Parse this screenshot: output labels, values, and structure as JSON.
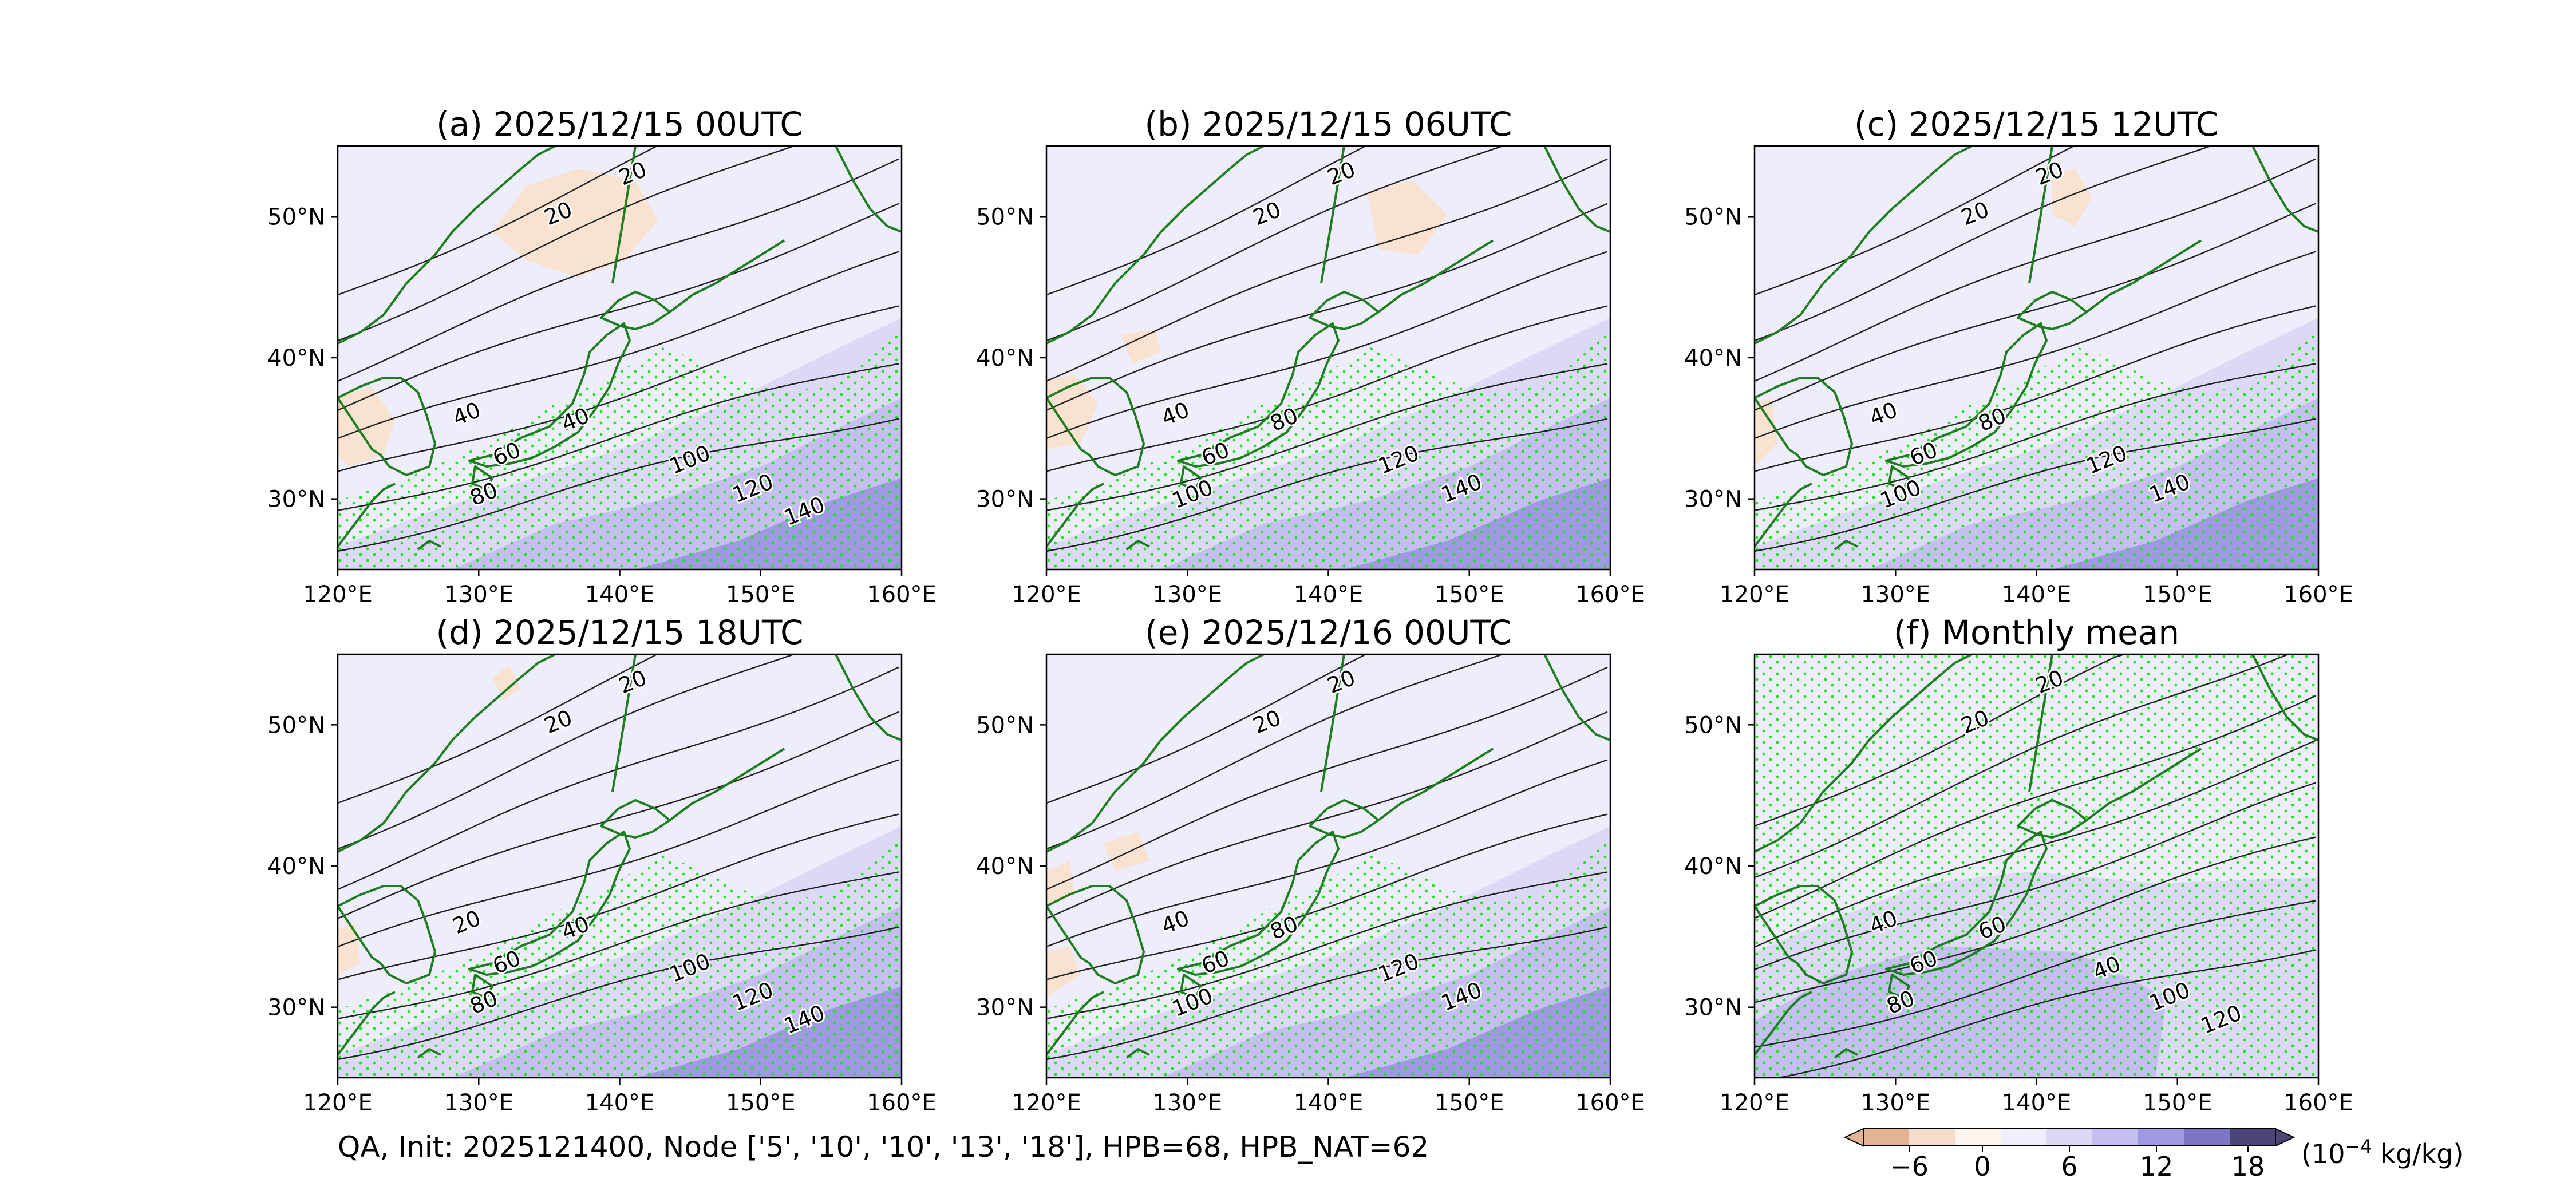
{
  "figure": {
    "panels": [
      {
        "title": "(a) 2025/12/15 00UTC",
        "contour_labels": [
          "20",
          "20",
          "40",
          "60",
          "40",
          "80",
          "100",
          "120",
          "140"
        ],
        "stipple": "southern",
        "anomaly": "a"
      },
      {
        "title": "(b) 2025/12/15 06UTC",
        "contour_labels": [
          "20",
          "20",
          "40",
          "60",
          "80",
          "100",
          "120",
          "140"
        ],
        "stipple": "southern",
        "anomaly": "b"
      },
      {
        "title": "(c) 2025/12/15 12UTC",
        "contour_labels": [
          "20",
          "20",
          "40",
          "60",
          "80",
          "100",
          "120",
          "140"
        ],
        "stipple": "southern",
        "anomaly": "c"
      },
      {
        "title": "(d) 2025/12/15 18UTC",
        "contour_labels": [
          "20",
          "20",
          "20",
          "60",
          "40",
          "80",
          "100",
          "120",
          "140"
        ],
        "stipple": "southern",
        "anomaly": "d"
      },
      {
        "title": "(e) 2025/12/16 00UTC",
        "contour_labels": [
          "20",
          "20",
          "40",
          "60",
          "80",
          "100",
          "120",
          "140"
        ],
        "stipple": "southern",
        "anomaly": "e"
      },
      {
        "title": "(f) Monthly mean",
        "contour_labels": [
          "20",
          "20",
          "40",
          "60",
          "60",
          "80",
          "40",
          "100",
          "120"
        ],
        "stipple": "full",
        "anomaly": "f"
      }
    ],
    "lon_ticks": [
      "120°E",
      "130°E",
      "140°E",
      "150°E",
      "160°E"
    ],
    "lat_ticks": [
      "50°N",
      "40°N",
      "30°N"
    ],
    "footer": "QA, Init: 2025121400, Node ['5', '10', '10', '13', '18'], HPB=68, HPB_NAT=62",
    "colorbar": {
      "ticks": [
        "−6",
        "0",
        "6",
        "12",
        "18"
      ],
      "unit_prefix": "(10",
      "unit_exp": "−4",
      "unit_suffix": " kg/kg)",
      "colors": [
        "#e3b394",
        "#f6dccb",
        "#fdf4ee",
        "#f0eefb",
        "#dcd9f6",
        "#c4bff0",
        "#9f99e2",
        "#7d76c7",
        "#4c4678"
      ]
    },
    "colors": {
      "coast": "#1e7d1e",
      "stipple": "#19e619",
      "contour": "#222222",
      "base_fill": "#eeedfc"
    }
  }
}
